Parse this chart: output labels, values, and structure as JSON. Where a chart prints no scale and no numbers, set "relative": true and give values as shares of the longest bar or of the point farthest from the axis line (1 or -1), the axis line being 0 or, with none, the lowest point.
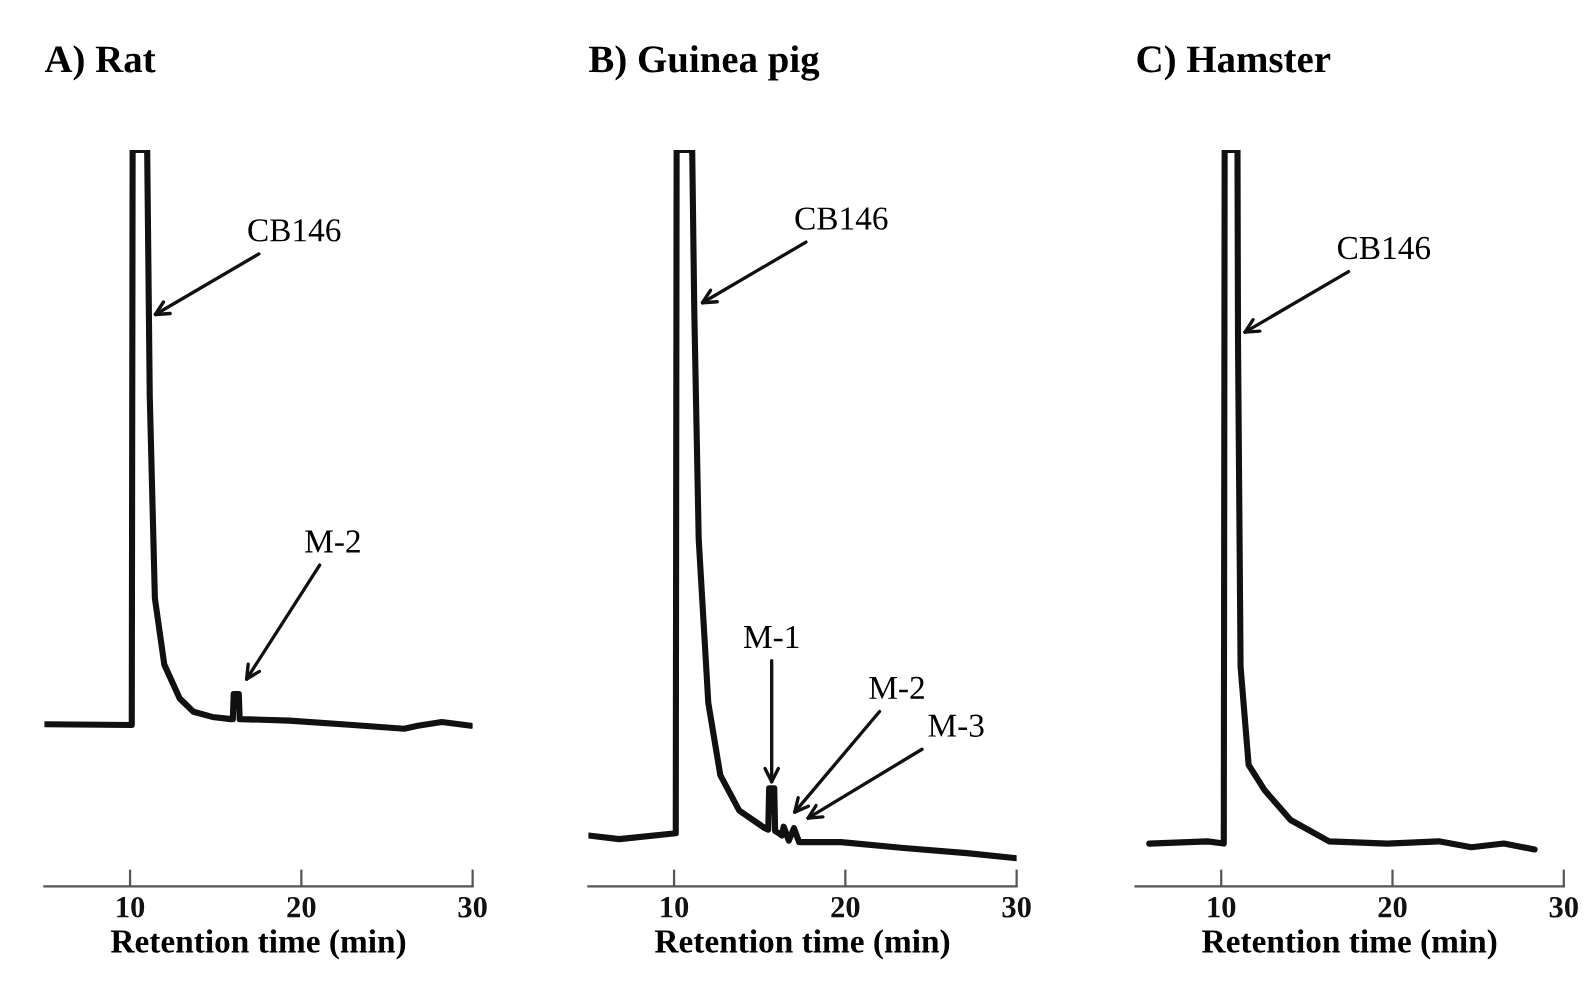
{
  "chart_data": [
    {
      "type": "line",
      "title": "A) Rat",
      "xlabel": "Retention time (min)",
      "relative": true,
      "color": "#111111",
      "xlim": [
        5,
        30
      ],
      "xticks": [
        10,
        20,
        30
      ],
      "tick_labels": "x",
      "x": [
        5,
        10.1,
        10.15,
        11.0,
        11.15,
        11.45,
        12.0,
        12.9,
        13.7,
        14.8,
        15.9,
        16.0,
        16.05,
        16.35,
        16.4,
        16.5,
        19.3,
        23.0,
        26.0,
        26.8,
        28.2,
        29.9
      ],
      "values": [
        0.22,
        0.219,
        1.0,
        1.0,
        0.666,
        0.391,
        0.301,
        0.255,
        0.237,
        0.23,
        0.227,
        0.227,
        0.261,
        0.261,
        0.227,
        0.227,
        0.225,
        0.219,
        0.214,
        0.218,
        0.223,
        0.218
      ],
      "annotations": [
        {
          "text": "CB146",
          "x": 11.15,
          "y": 0.772
        },
        {
          "text": "M-2",
          "x": 16.6,
          "y": 0.274
        }
      ]
    },
    {
      "type": "line",
      "title": "B) Guinea pig",
      "xlabel": "Retention time (min)",
      "relative": true,
      "color": "#111111",
      "xlim": [
        5,
        30
      ],
      "xticks": [
        10,
        20,
        30
      ],
      "tick_labels": "x",
      "x": [
        5,
        6.8,
        10.1,
        10.15,
        11.06,
        11.18,
        11.44,
        12.0,
        12.7,
        13.8,
        15.3,
        15.5,
        15.55,
        15.85,
        15.9,
        16.05,
        16.3,
        16.4,
        16.7,
        17.0,
        17.3,
        19.75,
        23.4,
        27.1,
        30
      ],
      "values": [
        0.069,
        0.064,
        0.072,
        1.0,
        1.0,
        0.783,
        0.471,
        0.249,
        0.151,
        0.103,
        0.079,
        0.077,
        0.133,
        0.133,
        0.075,
        0.073,
        0.069,
        0.081,
        0.062,
        0.079,
        0.06,
        0.06,
        0.052,
        0.045,
        0.038
      ],
      "annotations": [
        {
          "text": "CB146",
          "x": 11.33,
          "y": 0.788
        },
        {
          "text": "M-1",
          "x": 15.7,
          "y": 0.133
        },
        {
          "text": "M-2",
          "x": 16.8,
          "y": 0.094
        },
        {
          "text": "M-3",
          "x": 17.5,
          "y": 0.088
        }
      ]
    },
    {
      "type": "line",
      "title": "C) Hamster",
      "xlabel": "Retention time (min)",
      "relative": true,
      "color": "#111111",
      "xlim": [
        5,
        30
      ],
      "xticks": [
        10,
        20,
        30
      ],
      "tick_labels": "x",
      "x": [
        5.8,
        9.2,
        10.15,
        10.2,
        10.95,
        10.98,
        11.13,
        11.6,
        12.55,
        14.05,
        16.3,
        19.7,
        22.7,
        24.6,
        26.5,
        28.3
      ],
      "values": [
        0.058,
        0.061,
        0.058,
        1.0,
        1.0,
        0.74,
        0.298,
        0.165,
        0.13,
        0.09,
        0.061,
        0.058,
        0.061,
        0.053,
        0.058,
        0.05
      ],
      "annotations": [
        {
          "text": "CB146",
          "x": 11.06,
          "y": 0.748
        }
      ]
    }
  ]
}
